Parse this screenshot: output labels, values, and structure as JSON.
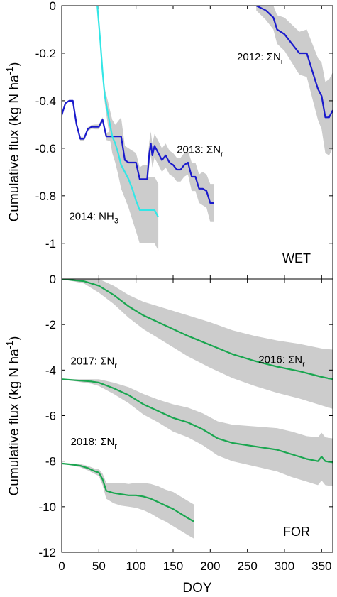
{
  "colors": {
    "band": "#cccccc",
    "blue": "#1a1acc",
    "cyan": "#33e6e6",
    "green": "#1aa650"
  },
  "chart_data": [
    {
      "type": "line",
      "panel_label": "WET",
      "ylabel_main": "Cumulative flux (kg N ha",
      "ylabel_sup": "-1",
      "ylabel_close": ")",
      "xlim": [
        0,
        365
      ],
      "ylim": [
        -1.15,
        0
      ],
      "yticks": [
        0,
        -0.2,
        -0.4,
        -0.6,
        -0.8,
        -1
      ],
      "ytick_labels": [
        "0",
        "-0.2",
        "-0.4",
        "-0.6",
        "-0.8",
        "-1"
      ],
      "grid": false,
      "series": [
        {
          "name": "2012: ΣNr",
          "color": "blue",
          "x": [
            262,
            275,
            285,
            290,
            300,
            310,
            320,
            330,
            335,
            340,
            345,
            350,
            355,
            360,
            365
          ],
          "y": [
            0,
            -0.02,
            -0.05,
            -0.1,
            -0.12,
            -0.16,
            -0.2,
            -0.2,
            -0.25,
            -0.3,
            -0.35,
            -0.38,
            -0.47,
            -0.47,
            -0.44
          ],
          "band": [
            0.02,
            0.04,
            0.05,
            0.06,
            0.07,
            0.08,
            0.09,
            0.1,
            0.11,
            0.12,
            0.13,
            0.14,
            0.15,
            0.16,
            0.16
          ]
        },
        {
          "name": "2013: ΣNr",
          "color": "blue",
          "x": [
            0,
            5,
            10,
            15,
            18,
            20,
            25,
            30,
            35,
            40,
            45,
            50,
            55,
            60,
            65,
            70,
            75,
            80,
            85,
            90,
            95,
            100,
            105,
            110,
            115,
            118,
            120,
            122,
            125,
            130,
            135,
            140,
            145,
            150,
            155,
            160,
            165,
            170,
            175,
            180,
            185,
            190,
            195,
            200,
            205
          ],
          "y": [
            -0.46,
            -0.41,
            -0.4,
            -0.4,
            -0.46,
            -0.5,
            -0.56,
            -0.56,
            -0.52,
            -0.51,
            -0.51,
            -0.51,
            -0.48,
            -0.55,
            -0.55,
            -0.55,
            -0.55,
            -0.55,
            -0.65,
            -0.66,
            -0.66,
            -0.66,
            -0.73,
            -0.73,
            -0.73,
            -0.62,
            -0.58,
            -0.63,
            -0.59,
            -0.62,
            -0.65,
            -0.63,
            -0.66,
            -0.67,
            -0.69,
            -0.69,
            -0.67,
            -0.66,
            -0.72,
            -0.72,
            -0.77,
            -0.77,
            -0.78,
            -0.83,
            -0.83
          ],
          "band": [
            0,
            0,
            0,
            0,
            0.005,
            0.005,
            0.008,
            0.008,
            0.008,
            0.008,
            0.01,
            0.01,
            0.01,
            0.015,
            0.02,
            0.04,
            0.06,
            0.08,
            0.06,
            0.06,
            0.05,
            0.04,
            0.05,
            0.06,
            0.06,
            0.05,
            0.05,
            0.05,
            0.05,
            0.05,
            0.05,
            0.05,
            0.05,
            0.05,
            0.05,
            0.05,
            0.05,
            0.05,
            0.06,
            0.06,
            0.06,
            0.07,
            0.07,
            0.08,
            0.08
          ]
        },
        {
          "name": "2014: NH3",
          "color": "cyan",
          "x": [
            48,
            52,
            55,
            58,
            62,
            65,
            68,
            72,
            76,
            80,
            85,
            90,
            95,
            100,
            105,
            110,
            115,
            120,
            125,
            130
          ],
          "y": [
            0,
            -0.15,
            -0.28,
            -0.38,
            -0.45,
            -0.5,
            -0.55,
            -0.58,
            -0.62,
            -0.67,
            -0.7,
            -0.73,
            -0.77,
            -0.82,
            -0.86,
            -0.86,
            -0.86,
            -0.86,
            -0.86,
            -0.89
          ],
          "band": [
            0,
            0.01,
            0.02,
            0.03,
            0.05,
            0.06,
            0.07,
            0.08,
            0.09,
            0.1,
            0.11,
            0.12,
            0.13,
            0.13,
            0.14,
            0.14,
            0.14,
            0.14,
            0.14,
            0.14
          ]
        }
      ],
      "annotations": [
        {
          "main": "2012: ΣN",
          "sub": "r",
          "x": 236,
          "y": -0.23
        },
        {
          "main": "2013: ΣN",
          "sub": "r",
          "x": 155,
          "y": -0.62
        },
        {
          "main": "2014: NH",
          "sub": "3",
          "x": 10,
          "y": -0.9
        }
      ]
    },
    {
      "type": "line",
      "panel_label": "FOR",
      "xlabel": "DOY",
      "ylabel_main": "Cumulative flux (kg N ha",
      "ylabel_sup": "-1",
      "ylabel_close": ")",
      "xlim": [
        0,
        365
      ],
      "ylim": [
        -12,
        0
      ],
      "xticks": [
        0,
        50,
        100,
        150,
        200,
        250,
        300,
        350
      ],
      "xtick_labels": [
        "0",
        "50",
        "100",
        "150",
        "200",
        "250",
        "300",
        "350"
      ],
      "yticks": [
        0,
        -2,
        -4,
        -6,
        -8,
        -10,
        -12
      ],
      "ytick_labels": [
        "0",
        "-2",
        "-4",
        "-6",
        "-8",
        "-10",
        "-12"
      ],
      "grid": false,
      "series": [
        {
          "name": "2016: ΣNr",
          "color": "green",
          "x": [
            0,
            30,
            50,
            70,
            90,
            110,
            130,
            150,
            170,
            200,
            230,
            260,
            290,
            320,
            350,
            365
          ],
          "y": [
            0,
            -0.1,
            -0.3,
            -0.7,
            -1.2,
            -1.6,
            -1.9,
            -2.2,
            -2.5,
            -2.9,
            -3.3,
            -3.6,
            -3.85,
            -4.05,
            -4.3,
            -4.4
          ],
          "band": [
            0,
            0.1,
            0.3,
            0.4,
            0.5,
            0.6,
            0.7,
            0.8,
            0.9,
            1.0,
            1.05,
            1.1,
            1.15,
            1.2,
            1.25,
            1.3
          ]
        },
        {
          "name": "2017: ΣNr",
          "color": "green",
          "x": [
            0,
            20,
            40,
            50,
            70,
            90,
            110,
            130,
            150,
            170,
            190,
            210,
            230,
            250,
            270,
            290,
            310,
            330,
            345,
            350,
            355,
            365
          ],
          "y": [
            -4.4,
            -4.45,
            -4.5,
            -4.55,
            -4.8,
            -5.1,
            -5.5,
            -5.8,
            -6.1,
            -6.3,
            -6.6,
            -7.0,
            -7.2,
            -7.3,
            -7.4,
            -7.5,
            -7.7,
            -7.9,
            -8.0,
            -7.8,
            -8.0,
            -8.05
          ],
          "band": [
            0,
            0.05,
            0.1,
            0.15,
            0.25,
            0.35,
            0.45,
            0.5,
            0.6,
            0.65,
            0.7,
            0.75,
            0.8,
            0.85,
            0.9,
            0.95,
            1.0,
            1.0,
            1.05,
            1.05,
            1.05,
            1.05
          ]
        },
        {
          "name": "2018: ΣNr",
          "color": "green",
          "x": [
            0,
            15,
            25,
            35,
            45,
            50,
            55,
            60,
            65,
            70,
            80,
            90,
            100,
            110,
            120,
            130,
            140,
            150,
            160,
            170,
            178
          ],
          "y": [
            -8.1,
            -8.15,
            -8.2,
            -8.3,
            -8.45,
            -8.5,
            -8.8,
            -9.3,
            -9.35,
            -9.4,
            -9.45,
            -9.5,
            -9.5,
            -9.55,
            -9.65,
            -9.8,
            -9.95,
            -10.1,
            -10.3,
            -10.5,
            -10.65
          ],
          "band": [
            0,
            0.05,
            0.07,
            0.1,
            0.12,
            0.15,
            0.25,
            0.35,
            0.4,
            0.45,
            0.5,
            0.5,
            0.55,
            0.6,
            0.65,
            0.7,
            0.7,
            0.75,
            0.75,
            0.75,
            0.75
          ]
        }
      ],
      "annotations": [
        {
          "main": "2016: ΣN",
          "sub": "r",
          "x": 265,
          "y": -3.7
        },
        {
          "main": "2017: ΣN",
          "sub": "r",
          "x": 12,
          "y": -3.75
        },
        {
          "main": "2018: ΣN",
          "sub": "r",
          "x": 12,
          "y": -7.3
        }
      ]
    }
  ]
}
